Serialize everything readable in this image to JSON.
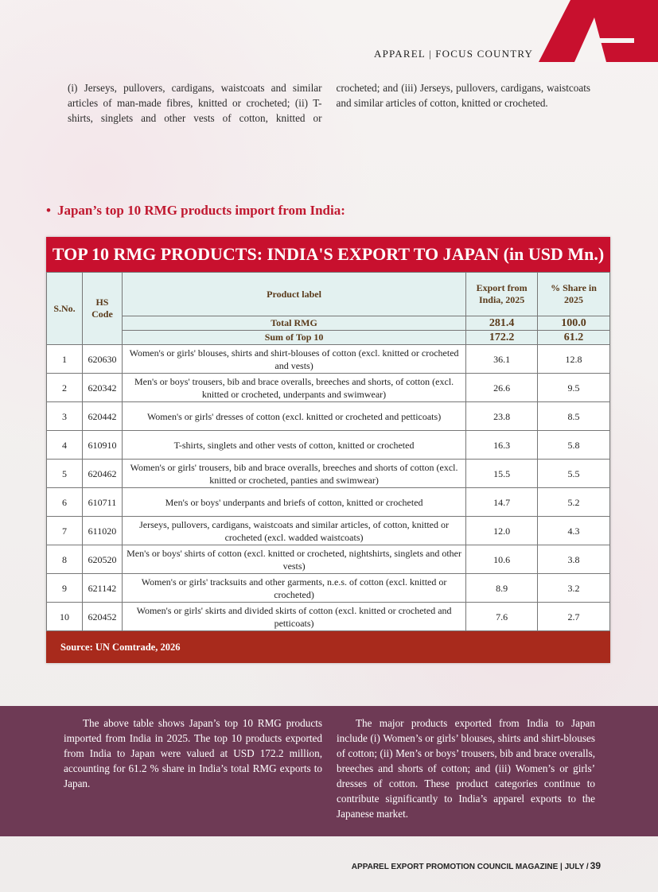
{
  "header": {
    "section": "APPAREL | FOCUS COUNTRY"
  },
  "intro": "(i) Jerseys, pullovers, cardigans, waistcoats and similar articles of man-made fibres, knitted or crocheted; (ii) T-shirts, singlets and other vests of cotton, knitted or crocheted; and (iii) Jerseys, pullovers, cardigans, waistcoats and similar articles of cotton, knitted or crocheted.",
  "heading": "Japan’s top 10 RMG products import from India:",
  "table": {
    "title": "TOP 10 RMG PRODUCTS: INDIA'S EXPORT TO JAPAN (in USD Mn.)",
    "columns": [
      "S.No.",
      "HS Code",
      "Product label",
      "Export from India, 2025",
      "% Share in 2025"
    ],
    "summary_rows": [
      [
        "Total RMG",
        "281.4",
        "100.0"
      ],
      [
        "Sum of Top 10",
        "172.2",
        "61.2"
      ]
    ],
    "rows": [
      [
        "1",
        "620630",
        "Women's or girls' blouses, shirts and shirt-blouses of cotton (excl. knitted or crocheted and vests)",
        "36.1",
        "12.8"
      ],
      [
        "2",
        "620342",
        "Men's or boys' trousers, bib and brace overalls, breeches and shorts, of cotton (excl. knitted or crocheted, underpants and swimwear)",
        "26.6",
        "9.5"
      ],
      [
        "3",
        "620442",
        "Women's or girls' dresses of cotton (excl. knitted or crocheted and petticoats)",
        "23.8",
        "8.5"
      ],
      [
        "4",
        "610910",
        "T-shirts, singlets and other vests of cotton, knitted or crocheted",
        "16.3",
        "5.8"
      ],
      [
        "5",
        "620462",
        "Women's or girls' trousers, bib and brace overalls, breeches and shorts of cotton (excl. knitted or crocheted, panties and swimwear)",
        "15.5",
        "5.5"
      ],
      [
        "6",
        "610711",
        "Men's or boys' underpants and briefs of cotton, knitted or crocheted",
        "14.7",
        "5.2"
      ],
      [
        "7",
        "611020",
        "Jerseys, pullovers, cardigans, waistcoats and similar articles, of cotton, knitted or crocheted (excl. wadded waistcoats)",
        "12.0",
        "4.3"
      ],
      [
        "8",
        "620520",
        "Men's or boys' shirts of cotton (excl. knitted or crocheted, nightshirts, singlets and other vests)",
        "10.6",
        "3.8"
      ],
      [
        "9",
        "621142",
        "Women's or girls' tracksuits and other garments, n.e.s. of cotton (excl. knitted or crocheted)",
        "8.9",
        "3.2"
      ],
      [
        "10",
        "620452",
        "Women's or girls' skirts and divided skirts of cotton (excl. knitted or crocheted and petticoats)",
        "7.6",
        "2.7"
      ]
    ],
    "source": "Source: UN Comtrade, 2026"
  },
  "summary": [
    "The above table shows Japan’s top 10 RMG products imported from India in 2025. The top 10 products exported from India to Japan were valued at USD 172.2 million, accounting for 61.2 % share in India’s total RMG exports to Japan.",
    "The major products exported from India to Japan include (i) Women’s or girls’ blouses, shirts and shirt-blouses of cotton; (ii) Men’s or boys’ trousers, bib and brace overalls, breeches and shorts of cotton; and (iii) Women’s or girls’ dresses of cotton. These product categories continue to contribute significantly to India’s apparel exports to the Japanese market."
  ],
  "footer": {
    "text": "APPAREL EXPORT PROMOTION COUNCIL MAGAZINE | JULY /",
    "page": "39"
  }
}
